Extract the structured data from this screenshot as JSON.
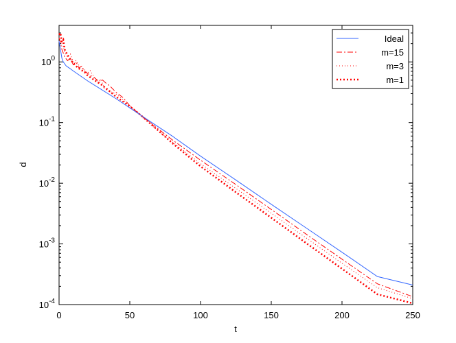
{
  "chart_data": {
    "type": "line",
    "xlabel": "t",
    "ylabel": "d",
    "xlim": [
      0,
      250
    ],
    "ylim": [
      0.0001,
      4
    ],
    "yscale": "log",
    "grid": false,
    "legend_position": "top-right",
    "x_ticks": [
      0,
      50,
      100,
      150,
      200,
      250
    ],
    "y_ticks": [
      {
        "value": 0.0001,
        "exp": "-4"
      },
      {
        "value": 0.001,
        "exp": "-3"
      },
      {
        "value": 0.01,
        "exp": "-2"
      },
      {
        "value": 0.1,
        "exp": "-1"
      },
      {
        "value": 1,
        "exp": "0"
      }
    ],
    "y_tick_base": "10",
    "series": [
      {
        "name": "Ideal",
        "color": "#3366ff",
        "dash": "solid",
        "x": [
          0,
          1,
          2,
          3,
          5,
          8,
          10,
          15,
          20,
          30,
          40,
          50,
          60,
          80,
          100,
          125,
          150,
          175,
          200,
          225,
          250
        ],
        "y": [
          2.2,
          1.6,
          1.15,
          1.0,
          0.86,
          0.77,
          0.71,
          0.59,
          0.49,
          0.35,
          0.25,
          0.175,
          0.122,
          0.06,
          0.028,
          0.0113,
          0.0045,
          0.00181,
          0.00073,
          0.00029,
          0.00021
        ]
      },
      {
        "name": "m=15",
        "color": "#ff0000",
        "dash": "dashdot",
        "x": [
          0,
          1,
          2,
          3,
          4,
          6,
          8,
          10,
          12,
          14,
          16,
          18,
          20,
          22,
          25,
          28,
          30,
          33,
          36,
          40,
          45,
          50,
          55,
          60,
          70,
          80,
          100,
          125,
          150,
          175,
          200,
          225,
          250
        ],
        "y": [
          2.5,
          2.1,
          1.6,
          1.4,
          1.2,
          1.05,
          1.15,
          0.9,
          1.0,
          0.8,
          0.85,
          0.7,
          0.65,
          0.6,
          0.55,
          0.48,
          0.52,
          0.45,
          0.4,
          0.32,
          0.26,
          0.19,
          0.15,
          0.12,
          0.079,
          0.052,
          0.024,
          0.0095,
          0.0037,
          0.00143,
          0.00056,
          0.00022,
          0.000135
        ]
      },
      {
        "name": "m=3",
        "color": "#ff0000",
        "dash": "dotted",
        "x": [
          0,
          1,
          2,
          3,
          4,
          6,
          8,
          10,
          12,
          15,
          18,
          20,
          22,
          25,
          28,
          30,
          32,
          35,
          40,
          45,
          50,
          55,
          60,
          70,
          80,
          100,
          125,
          150,
          175,
          200,
          225,
          250
        ],
        "y": [
          3.0,
          2.8,
          2.0,
          1.8,
          1.4,
          1.2,
          1.35,
          1.0,
          1.05,
          0.8,
          0.75,
          0.65,
          0.72,
          0.55,
          0.45,
          0.5,
          0.36,
          0.33,
          0.3,
          0.24,
          0.19,
          0.15,
          0.115,
          0.073,
          0.048,
          0.021,
          0.0082,
          0.0032,
          0.00124,
          0.00048,
          0.00019,
          0.000125
        ]
      },
      {
        "name": "m=1",
        "color": "#ff0000",
        "dash": "heavydot",
        "x": [
          0,
          1,
          2,
          3,
          4,
          6,
          8,
          10,
          12,
          15,
          18,
          20,
          25,
          30,
          35,
          40,
          50,
          60,
          80,
          100,
          125,
          150,
          175,
          200,
          225,
          250
        ],
        "y": [
          2.8,
          3.0,
          2.1,
          2.3,
          1.6,
          1.3,
          1.1,
          0.95,
          0.85,
          0.75,
          0.68,
          0.6,
          0.5,
          0.42,
          0.34,
          0.27,
          0.185,
          0.12,
          0.046,
          0.019,
          0.0071,
          0.0027,
          0.00102,
          0.00039,
          0.000148,
          0.000105
        ]
      }
    ]
  }
}
